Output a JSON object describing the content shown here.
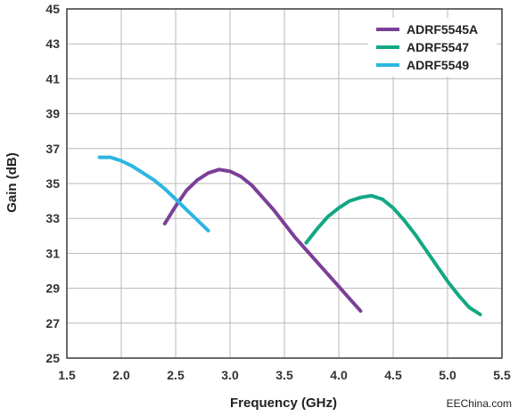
{
  "chart_data": {
    "type": "line",
    "xlabel": "Frequency (GHz)",
    "ylabel": "Gain (dB)",
    "xlim": [
      1.5,
      5.5
    ],
    "ylim": [
      25,
      45
    ],
    "xticks": [
      "1.5",
      "2.0",
      "2.5",
      "3.0",
      "3.5",
      "4.0",
      "4.5",
      "5.0",
      "5.5"
    ],
    "yticks": [
      "25",
      "27",
      "29",
      "31",
      "33",
      "35",
      "37",
      "39",
      "41",
      "43",
      "45"
    ],
    "grid": true,
    "legend_position": "top-right",
    "series": [
      {
        "name": "ADRF5545A",
        "color": "#7b3f98",
        "x": [
          2.4,
          2.5,
          2.6,
          2.7,
          2.8,
          2.9,
          3.0,
          3.1,
          3.2,
          3.3,
          3.4,
          3.5,
          3.6,
          3.7,
          3.8,
          3.9,
          4.0,
          4.1,
          4.2
        ],
        "y": [
          32.7,
          33.7,
          34.6,
          35.2,
          35.6,
          35.8,
          35.7,
          35.4,
          34.9,
          34.2,
          33.5,
          32.7,
          31.9,
          31.2,
          30.5,
          29.8,
          29.1,
          28.4,
          27.7
        ]
      },
      {
        "name": "ADRF5547",
        "color": "#12a884",
        "x": [
          3.7,
          3.8,
          3.9,
          4.0,
          4.1,
          4.2,
          4.3,
          4.4,
          4.5,
          4.6,
          4.7,
          4.8,
          4.9,
          5.0,
          5.1,
          5.2,
          5.3
        ],
        "y": [
          31.6,
          32.4,
          33.1,
          33.6,
          34.0,
          34.2,
          34.3,
          34.1,
          33.6,
          32.9,
          32.1,
          31.2,
          30.3,
          29.4,
          28.6,
          27.9,
          27.5
        ]
      },
      {
        "name": "ADRF5549",
        "color": "#2cb5e0",
        "x": [
          1.8,
          1.9,
          2.0,
          2.1,
          2.2,
          2.3,
          2.4,
          2.5,
          2.6,
          2.7,
          2.8
        ],
        "y": [
          36.5,
          36.5,
          36.3,
          36.0,
          35.6,
          35.2,
          34.7,
          34.1,
          33.5,
          32.9,
          32.3
        ]
      }
    ]
  },
  "watermark": "EEChina.com"
}
